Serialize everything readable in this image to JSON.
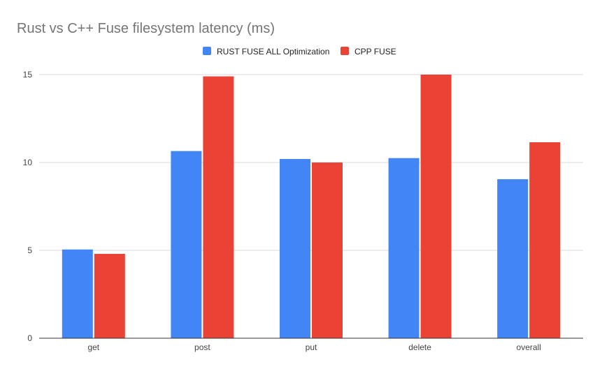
{
  "chart_data": {
    "type": "bar",
    "title": "Rust vs C++ Fuse filesystem latency (ms)",
    "xlabel": "",
    "ylabel": "",
    "categories": [
      "get",
      "post",
      "put",
      "delete",
      "overall"
    ],
    "series": [
      {
        "name": "RUST FUSE ALL Optimization",
        "color": "#4285f4",
        "values": [
          5.05,
          10.65,
          10.2,
          10.25,
          9.05
        ]
      },
      {
        "name": "CPP FUSE",
        "color": "#ea4335",
        "values": [
          4.8,
          14.9,
          10.0,
          15.0,
          11.15
        ]
      }
    ],
    "ylim": [
      0,
      15
    ],
    "yticks": [
      "0",
      "5",
      "10",
      "15"
    ],
    "grid": true,
    "legend_position": "top"
  }
}
